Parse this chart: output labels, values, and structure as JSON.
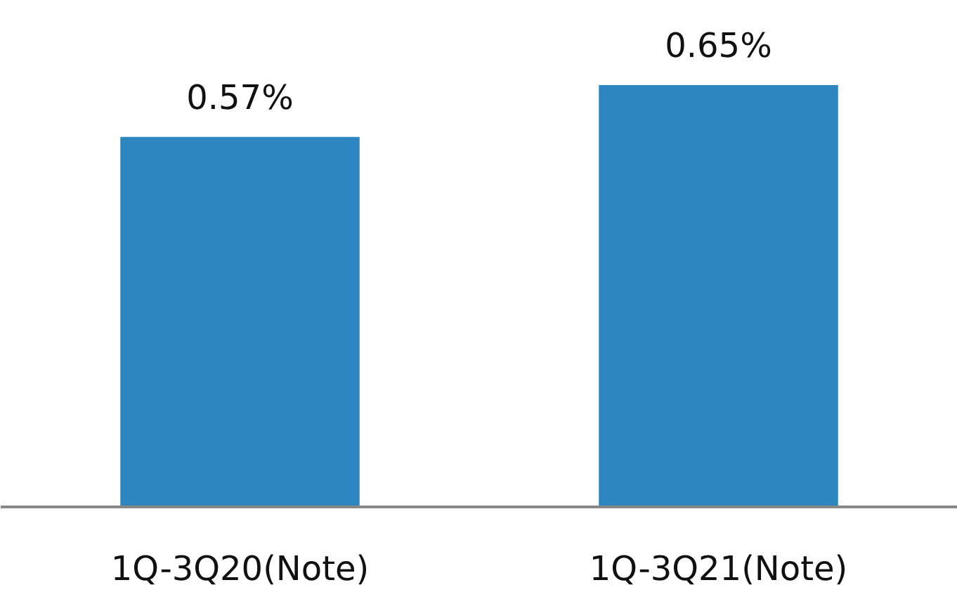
{
  "chart_data": {
    "type": "bar",
    "categories": [
      "1Q-3Q20(Note)",
      "1Q-3Q21(Note)"
    ],
    "values": [
      0.57,
      0.65
    ],
    "value_labels": [
      "0.57%",
      "0.65%"
    ],
    "color": "#2e86c1",
    "tick_labels": "x"
  }
}
